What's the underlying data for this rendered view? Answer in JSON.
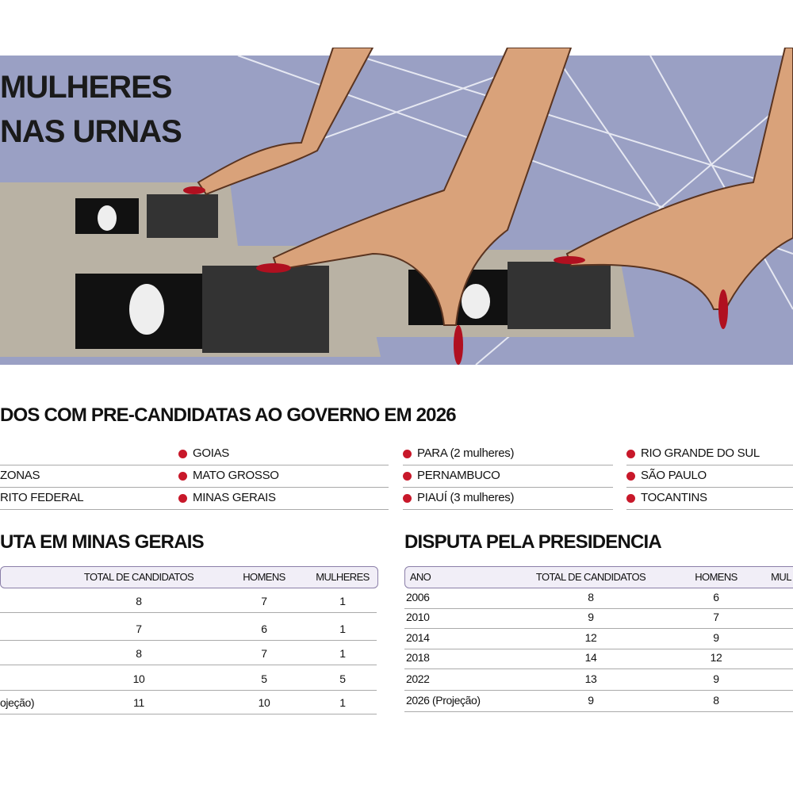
{
  "header": {
    "title_lines": [
      "MULHERES",
      "NAS URNAS"
    ]
  },
  "states": {
    "title": "DOS COM PRE-CANDIDATAS AO GOVERNO EM 2026",
    "columns": [
      [
        "ZONAS",
        "RITO FEDERAL"
      ],
      [
        "GOIAS",
        "MATO GROSSO",
        "MINAS GERAIS"
      ],
      [
        "PARA (2 mulheres)",
        "PERNAMBUCO",
        "PIAUÍ (3 mulheres)"
      ],
      [
        "RIO GRANDE DO SUL",
        "SÃO PAULO",
        "TOCANTINS"
      ]
    ]
  },
  "minas_table": {
    "title": "UTA EM MINAS GERAIS",
    "columns": [
      "TOTAL DE CANDIDATOS",
      "HOMENS",
      "MULHERES"
    ],
    "rows": [
      {
        "cells": [
          8,
          7,
          1
        ]
      },
      {
        "cells": [
          7,
          6,
          1
        ]
      },
      {
        "cells": [
          8,
          7,
          1
        ]
      },
      {
        "cells": [
          10,
          5,
          5
        ]
      },
      {
        "year": "ojeção)",
        "cells": [
          11,
          10,
          1
        ]
      }
    ]
  },
  "presidency_table": {
    "title": "DISPUTA PELA PRESIDENCIA",
    "columns": [
      "ANO",
      "TOTAL DE CANDIDATOS",
      "HOMENS",
      "MUL"
    ],
    "rows": [
      {
        "year": "2006",
        "cells": [
          8,
          6
        ]
      },
      {
        "year": "2010",
        "cells": [
          9,
          7
        ]
      },
      {
        "year": "2014",
        "cells": [
          12,
          9
        ]
      },
      {
        "year": "2018",
        "cells": [
          14,
          12
        ]
      },
      {
        "year": "2022",
        "cells": [
          13,
          9
        ]
      },
      {
        "year": "2026 (Projeção)",
        "cells": [
          9,
          8
        ]
      }
    ]
  }
}
